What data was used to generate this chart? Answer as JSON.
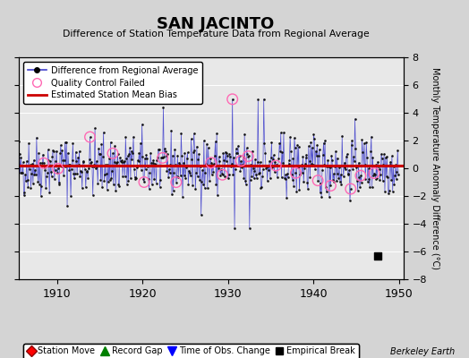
{
  "title": "SAN JACINTO",
  "subtitle": "Difference of Station Temperature Data from Regional Average",
  "ylabel": "Monthly Temperature Anomaly Difference (°C)",
  "xlabel_years": [
    1910,
    1920,
    1930,
    1940,
    1950
  ],
  "xlim": [
    1905.5,
    1950.5
  ],
  "ylim": [
    -8,
    8
  ],
  "yticks": [
    -8,
    -6,
    -4,
    -2,
    0,
    2,
    4,
    6,
    8
  ],
  "background_color": "#d4d4d4",
  "plot_bg_color": "#e8e8e8",
  "grid_color": "#ffffff",
  "bias_line_value": 0.18,
  "bias_line_color": "#cc0000",
  "series_line_color": "#4040cc",
  "series_dot_color": "#111111",
  "qc_failed_color": "#ff69b4",
  "empirical_break_year": 1947.5,
  "empirical_break_value": -6.3,
  "watermark": "Berkeley Earth",
  "seed": 42,
  "start_year": 1905.0,
  "end_year": 1950.0
}
